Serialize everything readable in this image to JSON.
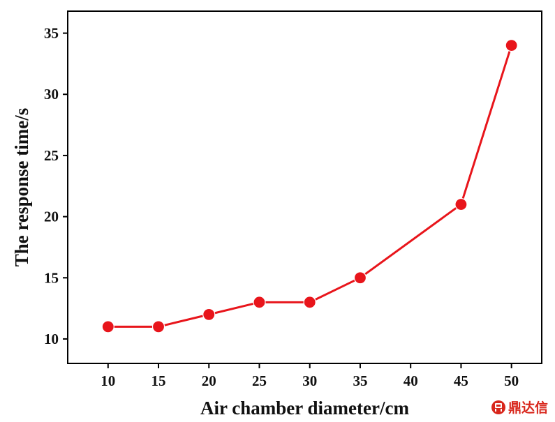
{
  "chart_data": {
    "type": "line",
    "x": [
      10,
      15,
      20,
      25,
      30,
      35,
      45,
      50
    ],
    "series": [
      {
        "values": [
          11,
          11,
          12,
          13,
          13,
          15,
          21,
          34
        ],
        "color": "#e8151b"
      }
    ],
    "xlabel": "Air chamber diameter/cm",
    "ylabel": "The response time/s",
    "xlim": [
      6,
      53
    ],
    "ylim": [
      8,
      36.8
    ],
    "xticks": [
      10,
      15,
      20,
      25,
      30,
      35,
      40,
      45,
      50
    ],
    "yticks": [
      10,
      15,
      20,
      25,
      30,
      35
    ],
    "grid": false,
    "legend": "none",
    "marker": "filled-circle"
  },
  "watermark": {
    "text": "鼎达信",
    "color": "#d8261b"
  }
}
